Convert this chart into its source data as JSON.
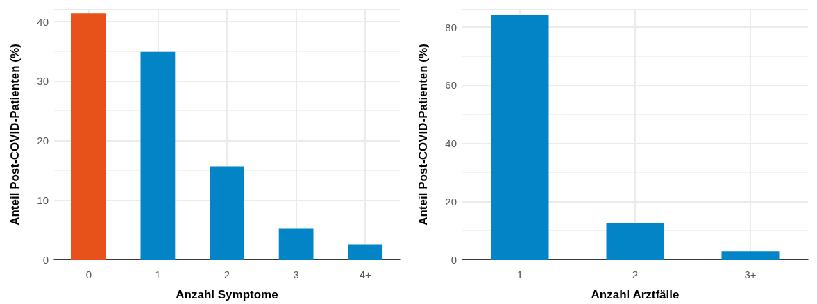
{
  "chart_data": [
    {
      "type": "bar",
      "categories": [
        "0",
        "1",
        "2",
        "3",
        "4+"
      ],
      "values": [
        41.4,
        34.9,
        15.7,
        5.2,
        2.5
      ],
      "colors": [
        "#e6521a",
        "#0284c7",
        "#0284c7",
        "#0284c7",
        "#0284c7"
      ],
      "xlabel": "Anzahl Symptome",
      "ylabel": "Anteil Post-COVID-Patienten (%)",
      "ylim": [
        0,
        42
      ],
      "yticks": [
        0,
        10,
        20,
        30,
        40
      ],
      "grid": true
    },
    {
      "type": "bar",
      "categories": [
        "1",
        "2",
        "3+"
      ],
      "values": [
        84.3,
        12.4,
        2.8
      ],
      "colors": [
        "#0284c7",
        "#0284c7",
        "#0284c7"
      ],
      "xlabel": "Anzahl Arztfälle",
      "ylabel": "Anteil Post-COVID-Patienten (%)",
      "ylim": [
        0,
        86
      ],
      "yticks": [
        0,
        20,
        40,
        60,
        80
      ],
      "grid": true
    }
  ]
}
